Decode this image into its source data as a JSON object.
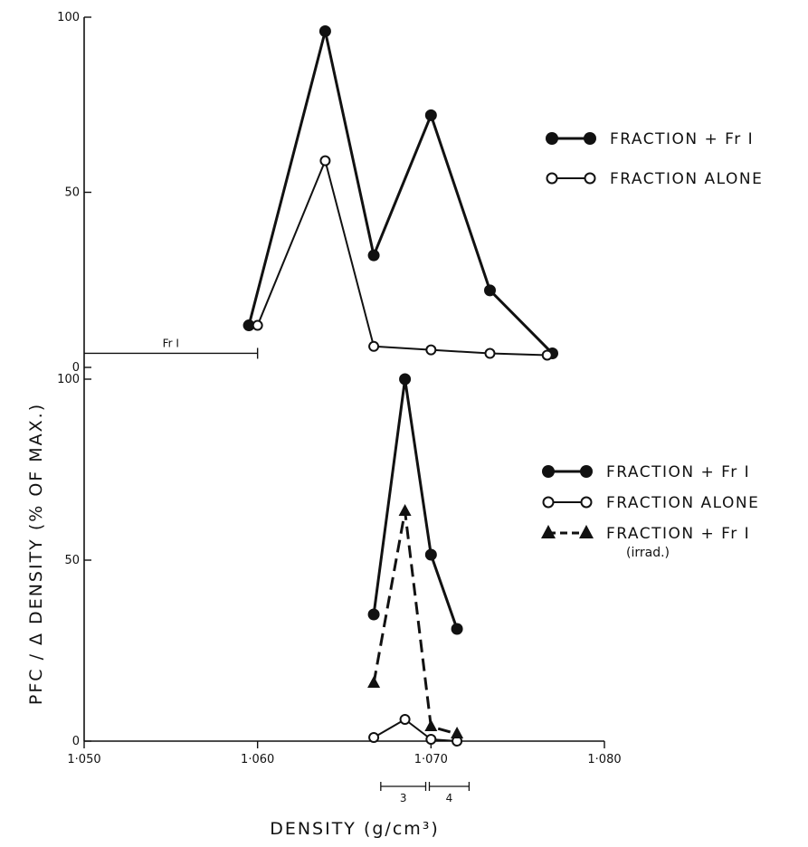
{
  "chart_data": [
    {
      "type": "line",
      "panel": "upper",
      "title": "",
      "xlabel": "DENSITY (g/cm³)",
      "ylabel": "PFC / Δ DENSITY (% OF MAX.)",
      "xlim": [
        1.05,
        1.08
      ],
      "ylim": [
        0,
        100
      ],
      "yticks": [
        "0",
        "50",
        "100"
      ],
      "grid": false,
      "legend_position": "right",
      "series": [
        {
          "name": "FRACTION + Fr I",
          "marker": "filled-circle",
          "style": "solid",
          "x": [
            1.0595,
            1.0639,
            1.0667,
            1.07,
            1.0734,
            1.077
          ],
          "y": [
            12,
            96,
            32,
            72,
            22,
            4
          ]
        },
        {
          "name": "FRACTION ALONE",
          "marker": "open-circle",
          "style": "solid",
          "x": [
            1.06,
            1.0639,
            1.0667,
            1.07,
            1.0734,
            1.0767
          ],
          "y": [
            12,
            59,
            6,
            5,
            4,
            3.5
          ]
        }
      ],
      "annotations": [
        {
          "label": "Fr I",
          "x_range": [
            1.05,
            1.06
          ],
          "y": 3.5
        }
      ]
    },
    {
      "type": "line",
      "panel": "lower",
      "title": "",
      "xlabel": "DENSITY (g/cm³)",
      "ylabel": "PFC / Δ DENSITY (% OF MAX.)",
      "xlim": [
        1.05,
        1.08
      ],
      "ylim": [
        0,
        100
      ],
      "xticks": [
        "1.050",
        "1.060",
        "1.070",
        "1.080"
      ],
      "yticks": [
        "0",
        "50",
        "100"
      ],
      "grid": false,
      "legend_position": "right",
      "series": [
        {
          "name": "FRACTION + Fr I",
          "marker": "filled-circle",
          "style": "solid",
          "x": [
            1.0667,
            1.0685,
            1.07,
            1.0715
          ],
          "y": [
            35,
            100,
            51.5,
            31
          ]
        },
        {
          "name": "FRACTION ALONE",
          "marker": "open-circle",
          "style": "solid",
          "x": [
            1.0667,
            1.0685,
            1.07,
            1.0715
          ],
          "y": [
            1,
            6,
            0.5,
            0
          ]
        },
        {
          "name": "FRACTION + Fr I",
          "subname": "(irrad.)",
          "marker": "filled-triangle",
          "style": "dashed",
          "x": [
            1.0667,
            1.0685,
            1.07,
            1.0715
          ],
          "y": [
            16,
            63.5,
            4,
            2
          ]
        }
      ],
      "fraction_brackets": [
        {
          "label": "3",
          "x_range": [
            1.067,
            1.0698
          ]
        },
        {
          "label": "4",
          "x_range": [
            1.0698,
            1.0723
          ]
        }
      ]
    }
  ]
}
